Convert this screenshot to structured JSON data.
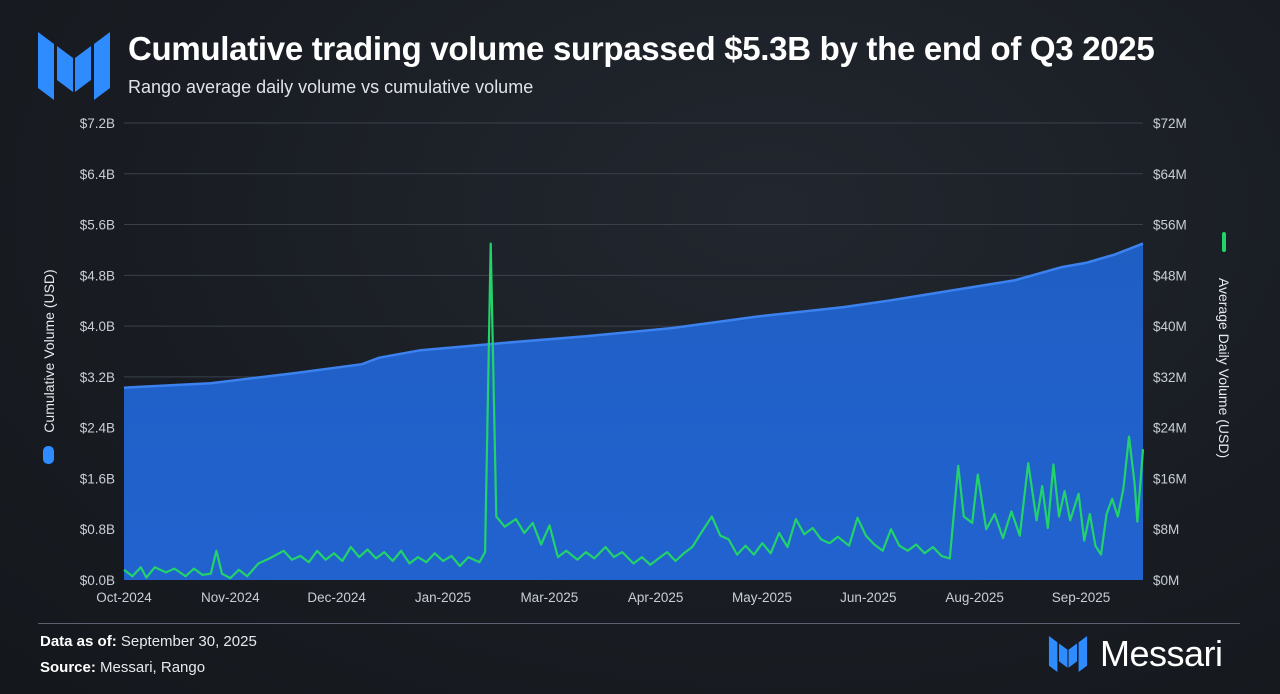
{
  "title": "Cumulative trading volume surpassed $5.3B by the end of Q3 2025",
  "subtitle": "Rango average daily volume vs cumulative volume",
  "footer": {
    "data_as_of_label": "Data as of:",
    "data_as_of_value": " September 30, 2025",
    "source_label": "Source:",
    "source_value": " Messari, Rango"
  },
  "brand": {
    "name": "Messari",
    "icon": "messari-logo-icon"
  },
  "colors": {
    "cumulative_area": "#1f5fc4",
    "cumulative_line": "#3b82f0",
    "daily_line": "#22d36a",
    "gridline": "#3a414c"
  },
  "chart_data": {
    "type": "area",
    "x_ticks": [
      "Oct-2024",
      "Nov-2024",
      "Dec-2024",
      "Jan-2025",
      "Mar-2025",
      "Apr-2025",
      "May-2025",
      "Jun-2025",
      "Aug-2025",
      "Sep-2025"
    ],
    "x_range": [
      "2024-10-01",
      "2025-09-30"
    ],
    "y_left": {
      "label": "Cumulative Volume (USD)",
      "range": [
        0,
        7.2
      ],
      "ticks": [
        "$0.0B",
        "$0.8B",
        "$1.6B",
        "$2.4B",
        "$3.2B",
        "$4.0B",
        "$4.8B",
        "$5.6B",
        "$6.4B",
        "$7.2B"
      ]
    },
    "y_right": {
      "label": "Average Daily Volume (USD)",
      "range": [
        0,
        72
      ],
      "ticks": [
        "$0M",
        "$8M",
        "$16M",
        "$24M",
        "$32M",
        "$40M",
        "$48M",
        "$56M",
        "$64M",
        "$72M"
      ]
    },
    "grid": true,
    "series": [
      {
        "name": "Cumulative Volume (USD)",
        "type": "area",
        "axis": "left",
        "unit": "billion USD",
        "points": [
          [
            "2024-10-01",
            3.03
          ],
          [
            "2024-11-01",
            3.1
          ],
          [
            "2024-12-01",
            3.26
          ],
          [
            "2024-12-25",
            3.4
          ],
          [
            "2024-12-31",
            3.5
          ],
          [
            "2025-01-15",
            3.62
          ],
          [
            "2025-02-15",
            3.74
          ],
          [
            "2025-03-15",
            3.84
          ],
          [
            "2025-04-15",
            3.97
          ],
          [
            "2025-05-15",
            4.15
          ],
          [
            "2025-06-15",
            4.3
          ],
          [
            "2025-07-01",
            4.4
          ],
          [
            "2025-07-15",
            4.5
          ],
          [
            "2025-08-15",
            4.72
          ],
          [
            "2025-09-01",
            4.93
          ],
          [
            "2025-09-10",
            5.0
          ],
          [
            "2025-09-20",
            5.13
          ],
          [
            "2025-09-30",
            5.3
          ]
        ]
      },
      {
        "name": "Average Daily Volume (USD)",
        "type": "line",
        "axis": "right",
        "unit": "million USD",
        "points": [
          [
            "2024-10-01",
            1.6
          ],
          [
            "2024-10-04",
            0.6
          ],
          [
            "2024-10-07",
            2.0
          ],
          [
            "2024-10-09",
            0.4
          ],
          [
            "2024-10-12",
            2.0
          ],
          [
            "2024-10-16",
            1.2
          ],
          [
            "2024-10-19",
            1.8
          ],
          [
            "2024-10-23",
            0.6
          ],
          [
            "2024-10-26",
            1.8
          ],
          [
            "2024-10-29",
            0.8
          ],
          [
            "2024-11-01",
            1.0
          ],
          [
            "2024-11-03",
            4.6
          ],
          [
            "2024-11-05",
            1.0
          ],
          [
            "2024-11-08",
            0.3
          ],
          [
            "2024-11-11",
            1.6
          ],
          [
            "2024-11-14",
            0.6
          ],
          [
            "2024-11-18",
            2.6
          ],
          [
            "2024-11-22",
            3.4
          ],
          [
            "2024-11-27",
            4.6
          ],
          [
            "2024-11-30",
            3.2
          ],
          [
            "2024-12-03",
            3.8
          ],
          [
            "2024-12-06",
            2.8
          ],
          [
            "2024-12-09",
            4.6
          ],
          [
            "2024-12-12",
            3.2
          ],
          [
            "2024-12-15",
            4.2
          ],
          [
            "2024-12-18",
            3.0
          ],
          [
            "2024-12-21",
            5.2
          ],
          [
            "2024-12-24",
            3.6
          ],
          [
            "2024-12-27",
            4.8
          ],
          [
            "2024-12-30",
            3.4
          ],
          [
            "2025-01-02",
            4.4
          ],
          [
            "2025-01-05",
            3.0
          ],
          [
            "2025-01-08",
            4.6
          ],
          [
            "2025-01-11",
            2.6
          ],
          [
            "2025-01-14",
            3.6
          ],
          [
            "2025-01-17",
            2.8
          ],
          [
            "2025-01-20",
            4.2
          ],
          [
            "2025-01-23",
            3.0
          ],
          [
            "2025-01-26",
            3.8
          ],
          [
            "2025-01-29",
            2.2
          ],
          [
            "2025-02-01",
            3.6
          ],
          [
            "2025-02-05",
            2.8
          ],
          [
            "2025-02-07",
            4.4
          ],
          [
            "2025-02-09",
            53.0
          ],
          [
            "2025-02-11",
            10.0
          ],
          [
            "2025-02-14",
            8.4
          ],
          [
            "2025-02-18",
            9.6
          ],
          [
            "2025-02-21",
            7.4
          ],
          [
            "2025-02-24",
            9.0
          ],
          [
            "2025-02-27",
            5.6
          ],
          [
            "2025-03-02",
            8.6
          ],
          [
            "2025-03-05",
            3.6
          ],
          [
            "2025-03-08",
            4.6
          ],
          [
            "2025-03-12",
            3.2
          ],
          [
            "2025-03-15",
            4.4
          ],
          [
            "2025-03-18",
            3.4
          ],
          [
            "2025-03-22",
            5.2
          ],
          [
            "2025-03-25",
            3.6
          ],
          [
            "2025-03-28",
            4.4
          ],
          [
            "2025-04-01",
            2.6
          ],
          [
            "2025-04-04",
            3.6
          ],
          [
            "2025-04-07",
            2.4
          ],
          [
            "2025-04-10",
            3.4
          ],
          [
            "2025-04-13",
            4.4
          ],
          [
            "2025-04-16",
            3.0
          ],
          [
            "2025-04-19",
            4.2
          ],
          [
            "2025-04-22",
            5.2
          ],
          [
            "2025-04-26",
            8.0
          ],
          [
            "2025-04-29",
            10.0
          ],
          [
            "2025-05-02",
            7.0
          ],
          [
            "2025-05-05",
            6.4
          ],
          [
            "2025-05-08",
            4.0
          ],
          [
            "2025-05-11",
            5.4
          ],
          [
            "2025-05-14",
            4.0
          ],
          [
            "2025-05-17",
            5.8
          ],
          [
            "2025-05-20",
            4.2
          ],
          [
            "2025-05-23",
            7.4
          ],
          [
            "2025-05-26",
            5.2
          ],
          [
            "2025-05-29",
            9.6
          ],
          [
            "2025-06-01",
            7.2
          ],
          [
            "2025-06-04",
            8.2
          ],
          [
            "2025-06-07",
            6.4
          ],
          [
            "2025-06-10",
            5.8
          ],
          [
            "2025-06-13",
            6.8
          ],
          [
            "2025-06-17",
            5.4
          ],
          [
            "2025-06-20",
            9.8
          ],
          [
            "2025-06-23",
            7.0
          ],
          [
            "2025-06-26",
            5.6
          ],
          [
            "2025-06-29",
            4.6
          ],
          [
            "2025-07-02",
            8.0
          ],
          [
            "2025-07-05",
            5.4
          ],
          [
            "2025-07-08",
            4.6
          ],
          [
            "2025-07-11",
            5.6
          ],
          [
            "2025-07-14",
            4.2
          ],
          [
            "2025-07-17",
            5.2
          ],
          [
            "2025-07-20",
            3.8
          ],
          [
            "2025-07-23",
            3.4
          ],
          [
            "2025-07-26",
            18.0
          ],
          [
            "2025-07-28",
            10.0
          ],
          [
            "2025-07-31",
            9.0
          ],
          [
            "2025-08-02",
            16.6
          ],
          [
            "2025-08-05",
            8.0
          ],
          [
            "2025-08-08",
            10.4
          ],
          [
            "2025-08-11",
            6.6
          ],
          [
            "2025-08-14",
            10.8
          ],
          [
            "2025-08-17",
            7.0
          ],
          [
            "2025-08-20",
            18.4
          ],
          [
            "2025-08-23",
            9.4
          ],
          [
            "2025-08-25",
            14.8
          ],
          [
            "2025-08-27",
            8.2
          ],
          [
            "2025-08-29",
            18.2
          ],
          [
            "2025-08-31",
            10.0
          ],
          [
            "2025-09-02",
            14.0
          ],
          [
            "2025-09-04",
            9.4
          ],
          [
            "2025-09-07",
            13.6
          ],
          [
            "2025-09-09",
            6.2
          ],
          [
            "2025-09-11",
            10.4
          ],
          [
            "2025-09-13",
            5.4
          ],
          [
            "2025-09-15",
            4.0
          ],
          [
            "2025-09-17",
            10.4
          ],
          [
            "2025-09-19",
            12.8
          ],
          [
            "2025-09-21",
            10.0
          ],
          [
            "2025-09-23",
            14.4
          ],
          [
            "2025-09-25",
            22.6
          ],
          [
            "2025-09-27",
            15.2
          ],
          [
            "2025-09-28",
            9.2
          ],
          [
            "2025-09-30",
            20.6
          ]
        ]
      }
    ]
  }
}
